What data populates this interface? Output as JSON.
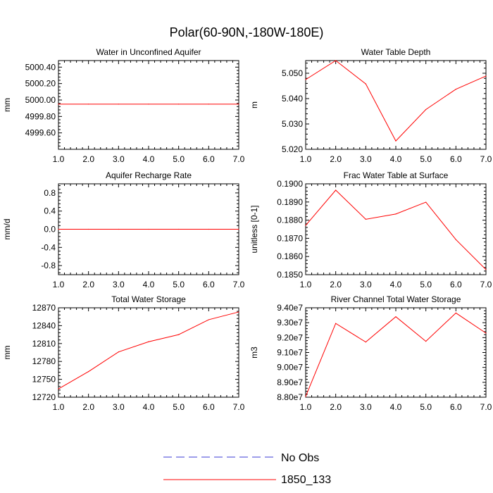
{
  "figure": {
    "title": "Polar(60-90N,-180W-180E)",
    "line_color": "#ff0000",
    "obs_color": "#3b3bd6"
  },
  "legend": {
    "entries": [
      {
        "label": "No Obs",
        "style": "dashed",
        "color": "#3b3bd6"
      },
      {
        "label": "1850_133",
        "style": "solid",
        "color": "#ff0000"
      }
    ]
  },
  "chart_data": [
    {
      "type": "line",
      "title": "Water in Unconfined Aquifer",
      "xlabel": "",
      "ylabel": "mm",
      "x": [
        1,
        2,
        3,
        4,
        5,
        6,
        7
      ],
      "xlim": [
        1,
        7
      ],
      "xticks": [
        "1.0",
        "2.0",
        "3.0",
        "4.0",
        "5.0",
        "6.0",
        "7.0"
      ],
      "ylim": [
        4999.4,
        5000.48
      ],
      "yticks": [
        4999.6,
        4999.8,
        5000.0,
        5000.2,
        5000.4
      ],
      "ytick_labels": [
        "4999.60",
        "4999.80",
        "5000.00",
        "5000.20",
        "5000.40"
      ],
      "series": [
        {
          "name": "1850_133",
          "values": [
            4999.95,
            4999.95,
            4999.95,
            4999.95,
            4999.95,
            4999.95,
            4999.95
          ]
        }
      ]
    },
    {
      "type": "line",
      "title": "Water Table Depth",
      "xlabel": "",
      "ylabel": "m",
      "x": [
        1,
        2,
        3,
        4,
        5,
        6,
        7
      ],
      "xlim": [
        1,
        7
      ],
      "xticks": [
        "1.0",
        "2.0",
        "3.0",
        "4.0",
        "5.0",
        "6.0",
        "7.0"
      ],
      "ylim": [
        5.02,
        5.055
      ],
      "yticks": [
        5.02,
        5.03,
        5.04,
        5.05
      ],
      "ytick_labels": [
        "5.020",
        "5.030",
        "5.040",
        "5.050"
      ],
      "series": [
        {
          "name": "1850_133",
          "values": [
            5.0475,
            5.055,
            5.0458,
            5.0233,
            5.0357,
            5.0437,
            5.0489
          ]
        }
      ]
    },
    {
      "type": "line",
      "title": "Aquifer Recharge Rate",
      "xlabel": "",
      "ylabel": "mm/d",
      "x": [
        1,
        2,
        3,
        4,
        5,
        6,
        7
      ],
      "xlim": [
        1,
        7
      ],
      "xticks": [
        "1.0",
        "2.0",
        "3.0",
        "4.0",
        "5.0",
        "6.0",
        "7.0"
      ],
      "ylim": [
        -1.0,
        1.0
      ],
      "yticks": [
        -0.8,
        -0.4,
        0.0,
        0.4,
        0.8
      ],
      "ytick_labels": [
        "-0.8",
        "-0.4",
        "0.0",
        "0.4",
        "0.8"
      ],
      "series": [
        {
          "name": "1850_133",
          "values": [
            0,
            0,
            0,
            0,
            0,
            0,
            0
          ]
        }
      ]
    },
    {
      "type": "line",
      "title": "Frac Water Table at Surface",
      "xlabel": "",
      "ylabel": "unitless [0-1]",
      "x": [
        1,
        2,
        3,
        4,
        5,
        6,
        7
      ],
      "xlim": [
        1,
        7
      ],
      "xticks": [
        "1.0",
        "2.0",
        "3.0",
        "4.0",
        "5.0",
        "6.0",
        "7.0"
      ],
      "ylim": [
        0.185,
        0.19
      ],
      "yticks": [
        0.185,
        0.186,
        0.187,
        0.188,
        0.189,
        0.19
      ],
      "ytick_labels": [
        "0.1850",
        "0.1860",
        "0.1870",
        "0.1880",
        "0.1890",
        "0.1900"
      ],
      "series": [
        {
          "name": "1850_133",
          "values": [
            0.18771,
            0.18965,
            0.18805,
            0.18834,
            0.18899,
            0.18693,
            0.18528
          ]
        }
      ]
    },
    {
      "type": "line",
      "title": "Total Water Storage",
      "xlabel": "",
      "ylabel": "mm",
      "x": [
        1,
        2,
        3,
        4,
        5,
        6,
        7
      ],
      "xlim": [
        1,
        7
      ],
      "xticks": [
        "1.0",
        "2.0",
        "3.0",
        "4.0",
        "5.0",
        "6.0",
        "7.0"
      ],
      "ylim": [
        12720,
        12870
      ],
      "yticks": [
        12720,
        12750,
        12780,
        12810,
        12840,
        12870
      ],
      "ytick_labels": [
        "12720",
        "12750",
        "12780",
        "12810",
        "12840",
        "12870"
      ],
      "series": [
        {
          "name": "1850_133",
          "values": [
            12734,
            12763,
            12796,
            12813,
            12825,
            12850,
            12863
          ]
        }
      ]
    },
    {
      "type": "line",
      "title": "River Channel Total Water Storage",
      "xlabel": "",
      "ylabel": "m3",
      "x": [
        1,
        2,
        3,
        4,
        5,
        6,
        7
      ],
      "xlim": [
        1,
        7
      ],
      "xticks": [
        "1.0",
        "2.0",
        "3.0",
        "4.0",
        "5.0",
        "6.0",
        "7.0"
      ],
      "ylim": [
        88000000,
        94000000
      ],
      "yticks": [
        88000000,
        89000000,
        90000000,
        91000000,
        92000000,
        93000000,
        94000000
      ],
      "ytick_labels": [
        "8.80e7",
        "8.90e7",
        "9.00e7",
        "9.10e7",
        "9.20e7",
        "9.30e7",
        "9.40e7"
      ],
      "series": [
        {
          "name": "1850_133",
          "values": [
            88050000,
            92950000,
            91700000,
            93400000,
            91750000,
            93650000,
            92300000
          ]
        }
      ]
    }
  ]
}
